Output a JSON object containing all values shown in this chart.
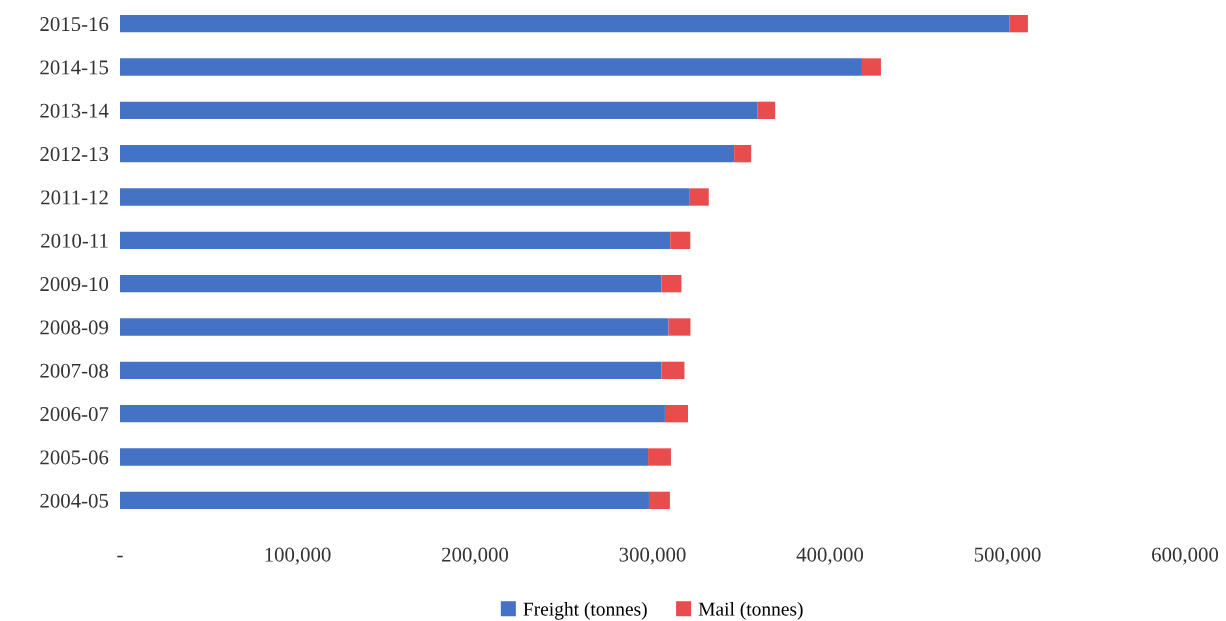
{
  "chart_data": {
    "type": "bar",
    "orientation": "horizontal",
    "stacked": true,
    "categories": [
      "2015-16",
      "2014-15",
      "2013-14",
      "2012-13",
      "2011-12",
      "2010-11",
      "2009-10",
      "2008-09",
      "2007-08",
      "2006-07",
      "2005-06",
      "2004-05"
    ],
    "series": [
      {
        "name": "Freight (tonnes)",
        "color": "#4472c4",
        "values": [
          501000,
          418000,
          359000,
          346000,
          321000,
          310000,
          305000,
          309000,
          305000,
          307000,
          297500,
          298000
        ]
      },
      {
        "name": "Mail (tonnes)",
        "color": "#e84c4c",
        "values": [
          10500,
          10700,
          10100,
          9600,
          10700,
          11300,
          11300,
          12400,
          13000,
          13000,
          12900,
          11800
        ]
      }
    ],
    "xlim": [
      0,
      600000
    ],
    "xticks": [
      {
        "value": 0,
        "label": "-"
      },
      {
        "value": 100000,
        "label": "100,000"
      },
      {
        "value": 200000,
        "label": "200,000"
      },
      {
        "value": 300000,
        "label": "300,000"
      },
      {
        "value": 400000,
        "label": "400,000"
      },
      {
        "value": 500000,
        "label": "500,000"
      },
      {
        "value": 600000,
        "label": "600,000"
      }
    ],
    "legend": "bottom"
  }
}
